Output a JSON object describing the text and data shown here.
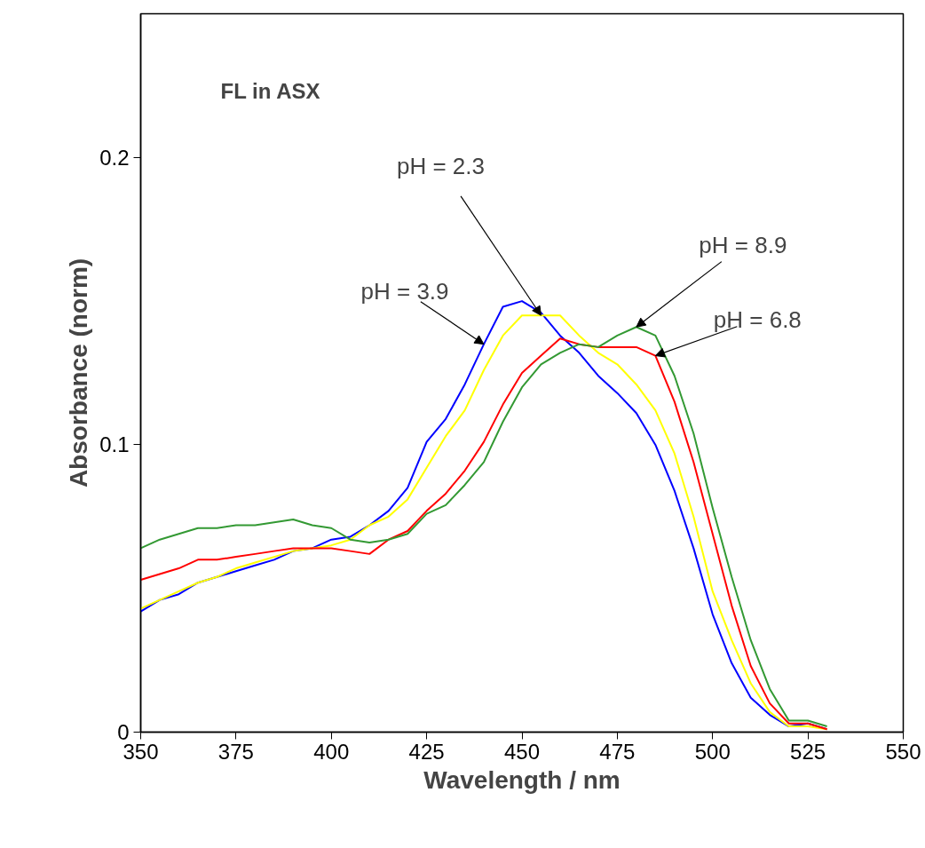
{
  "chart_data": {
    "type": "line",
    "title": "FL in ASX",
    "xlabel": "Wavelength / nm",
    "ylabel": "Absorbance (norm)",
    "x": [
      350,
      355,
      360,
      365,
      370,
      375,
      380,
      385,
      390,
      395,
      400,
      405,
      410,
      415,
      420,
      425,
      430,
      435,
      440,
      445,
      450,
      455,
      460,
      465,
      470,
      475,
      480,
      485,
      490,
      495,
      500,
      505,
      510,
      515,
      520,
      525,
      530
    ],
    "series": [
      {
        "name": "pH = 3.9",
        "color": "#0000ff",
        "values": [
          0.042,
          0.046,
          0.048,
          0.052,
          0.054,
          0.056,
          0.058,
          0.06,
          0.063,
          0.064,
          0.067,
          0.068,
          0.072,
          0.077,
          0.085,
          0.101,
          0.109,
          0.121,
          0.135,
          0.148,
          0.15,
          0.146,
          0.138,
          0.132,
          0.124,
          0.118,
          0.111,
          0.1,
          0.084,
          0.064,
          0.041,
          0.024,
          0.012,
          0.006,
          0.002,
          0.003,
          0.001
        ]
      },
      {
        "name": "pH = 2.3",
        "color": "#ffff00",
        "values": [
          0.043,
          0.046,
          0.049,
          0.052,
          0.054,
          0.057,
          0.059,
          0.061,
          0.063,
          0.064,
          0.065,
          0.067,
          0.072,
          0.075,
          0.081,
          0.092,
          0.103,
          0.112,
          0.126,
          0.138,
          0.145,
          0.145,
          0.145,
          0.138,
          0.132,
          0.128,
          0.121,
          0.112,
          0.097,
          0.075,
          0.049,
          0.032,
          0.017,
          0.007,
          0.002,
          0.002,
          0.001
        ]
      },
      {
        "name": "pH = 6.8",
        "color": "#ff0000",
        "values": [
          0.053,
          0.055,
          0.057,
          0.06,
          0.06,
          0.061,
          0.062,
          0.063,
          0.064,
          0.064,
          0.064,
          0.063,
          0.062,
          0.067,
          0.07,
          0.077,
          0.083,
          0.091,
          0.101,
          0.114,
          0.125,
          0.131,
          0.137,
          0.135,
          0.134,
          0.134,
          0.134,
          0.131,
          0.115,
          0.094,
          0.069,
          0.044,
          0.023,
          0.01,
          0.003,
          0.003,
          0.001
        ]
      },
      {
        "name": "pH = 8.9",
        "color": "#339933",
        "values": [
          0.064,
          0.067,
          0.069,
          0.071,
          0.071,
          0.072,
          0.072,
          0.073,
          0.074,
          0.072,
          0.071,
          0.067,
          0.066,
          0.067,
          0.069,
          0.076,
          0.079,
          0.086,
          0.094,
          0.108,
          0.12,
          0.128,
          0.132,
          0.135,
          0.134,
          0.138,
          0.141,
          0.138,
          0.124,
          0.104,
          0.078,
          0.054,
          0.032,
          0.015,
          0.004,
          0.004,
          0.002
        ]
      }
    ],
    "xlim": [
      350,
      550
    ],
    "ylim": [
      0,
      0.25
    ],
    "xticks": [
      350,
      375,
      400,
      425,
      450,
      475,
      500,
      525,
      550
    ],
    "yticks": [
      0,
      0.1,
      0.2
    ],
    "grid": false,
    "marker": "none",
    "line_style": "solid"
  }
}
